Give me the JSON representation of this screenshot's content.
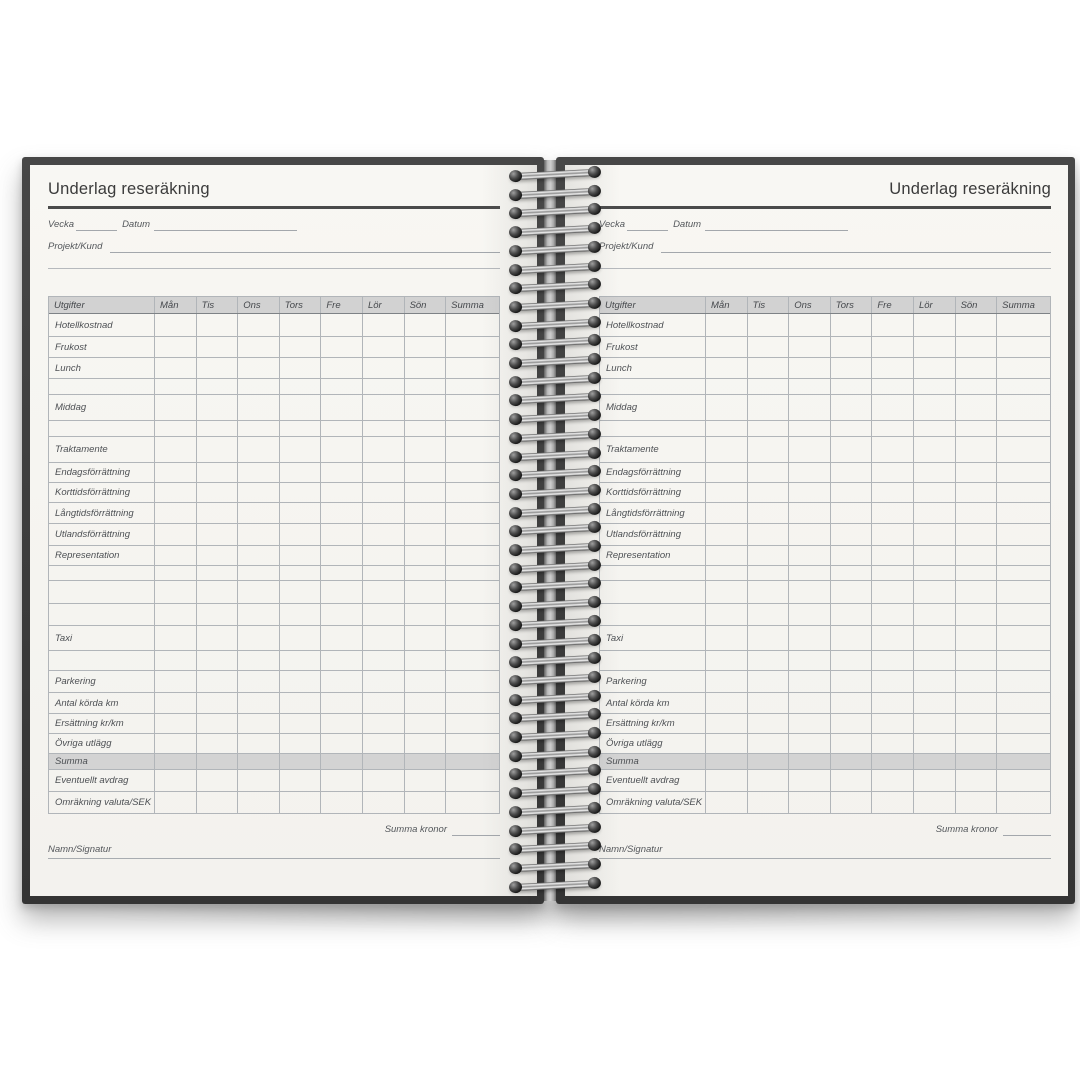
{
  "form": {
    "title": "Underlag reseräkning",
    "week_label": "Vecka",
    "date_label": "Datum",
    "project_label": "Projekt/Kund",
    "sum_total_label": "Summa kronor",
    "signature_label": "Namn/Signatur",
    "table": {
      "header": [
        "Utgifter",
        "Mån",
        "Tis",
        "Ons",
        "Tors",
        "Fre",
        "Lör",
        "Sön",
        "Summa"
      ],
      "rows": [
        {
          "label": "Hotellkostnad"
        },
        {
          "label": "Frukost"
        },
        {
          "label": "Lunch"
        },
        {
          "label": "",
          "blank": true
        },
        {
          "label": "Middag"
        },
        {
          "label": "",
          "blank": true
        },
        {
          "label": "Traktamente"
        },
        {
          "label": "Endagsförrättning"
        },
        {
          "label": "Korttidsförrättning"
        },
        {
          "label": "Långtidsförrättning"
        },
        {
          "label": "Utlandsförrättning"
        },
        {
          "label": "Representation"
        },
        {
          "label": "",
          "blank": true
        },
        {
          "label": "",
          "blank": true
        },
        {
          "label": "",
          "blank": true
        },
        {
          "label": "Taxi"
        },
        {
          "label": "",
          "blank": true
        },
        {
          "label": "Parkering"
        },
        {
          "label": "Antal körda km"
        },
        {
          "label": "Ersättning kr/km"
        },
        {
          "label": "Övriga utlägg"
        },
        {
          "label": "Summa",
          "highlight": true
        },
        {
          "label": "Eventuellt avdrag"
        },
        {
          "label": "Omräkning valuta/SEK"
        }
      ]
    }
  },
  "pages": [
    {
      "side": "left",
      "title_alignment": "left"
    },
    {
      "side": "right",
      "title_alignment": "right"
    }
  ],
  "colors": {
    "cover": "#3a3a3a",
    "paper": "#f6f5f1",
    "grid_line": "#b1b5b9",
    "header_fill": "#d2d2d2",
    "summa_fill": "#d3d3d3",
    "ink": "#4c4f53",
    "title_rule": "#4a4a4a"
  }
}
